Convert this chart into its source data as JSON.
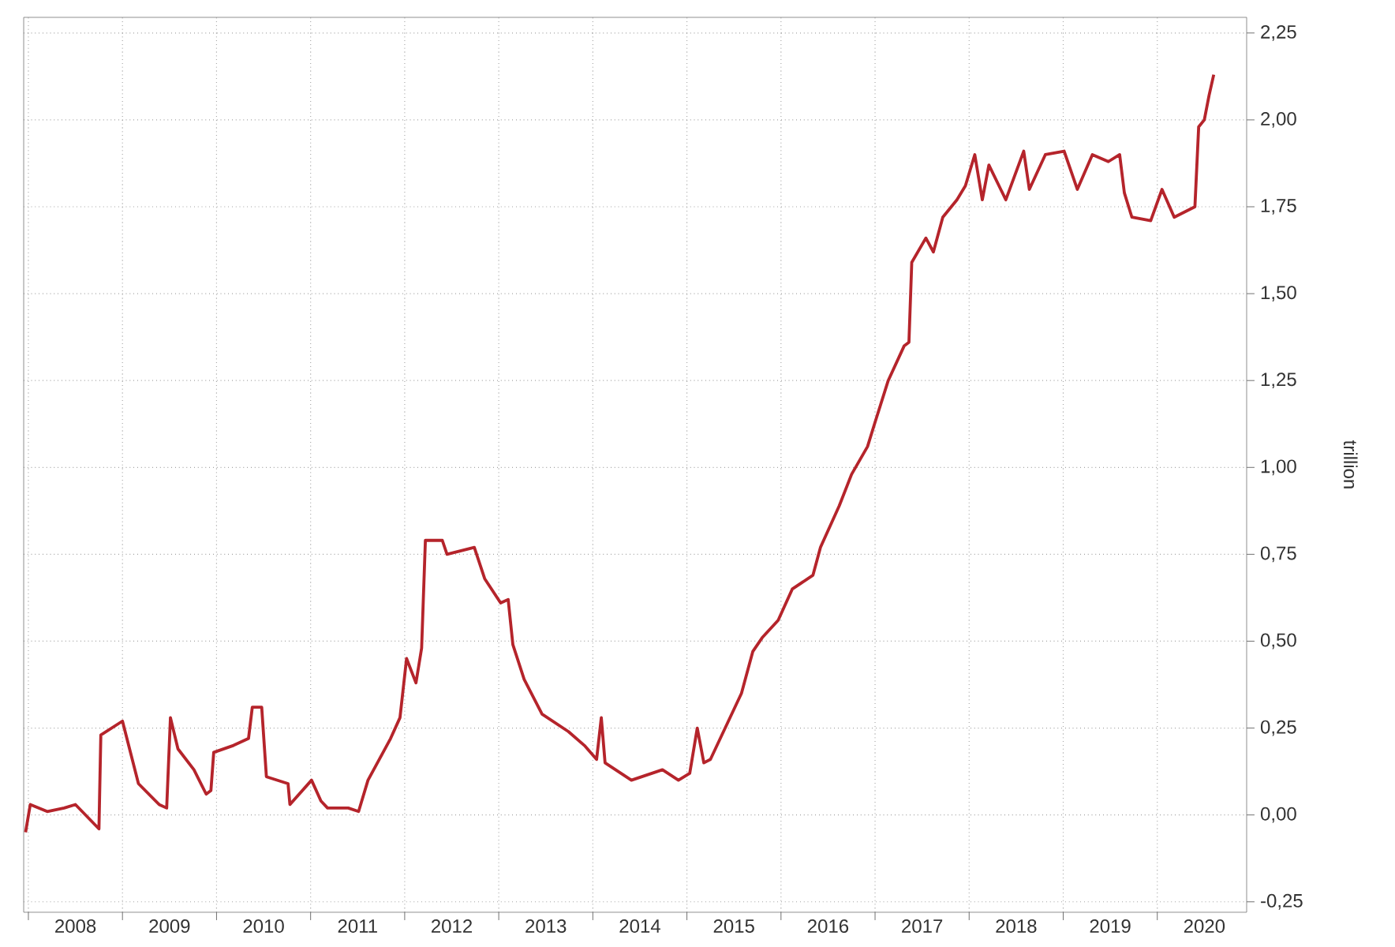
{
  "chart_data": {
    "type": "line",
    "ylabel": "trillion",
    "x": [
      2007.97,
      2008.02,
      2008.2,
      2008.38,
      2008.5,
      2008.75,
      2008.77,
      2009.0,
      2009.17,
      2009.39,
      2009.47,
      2009.51,
      2009.59,
      2009.76,
      2009.89,
      2009.94,
      2009.97,
      2010.18,
      2010.34,
      2010.38,
      2010.48,
      2010.53,
      2010.76,
      2010.78,
      2011.01,
      2011.11,
      2011.18,
      2011.4,
      2011.51,
      2011.61,
      2011.85,
      2011.95,
      2012.02,
      2012.12,
      2012.18,
      2012.22,
      2012.4,
      2012.45,
      2012.74,
      2012.85,
      2013.02,
      2013.1,
      2013.15,
      2013.27,
      2013.46,
      2013.74,
      2013.91,
      2014.04,
      2014.09,
      2014.13,
      2014.41,
      2014.74,
      2014.91,
      2015.03,
      2015.11,
      2015.18,
      2015.25,
      2015.58,
      2015.7,
      2015.8,
      2015.97,
      2016.12,
      2016.34,
      2016.42,
      2016.62,
      2016.75,
      2016.92,
      2017.0,
      2017.14,
      2017.31,
      2017.36,
      2017.39,
      2017.54,
      2017.62,
      2017.72,
      2017.87,
      2017.96,
      2018.06,
      2018.14,
      2018.21,
      2018.39,
      2018.58,
      2018.64,
      2018.81,
      2019.01,
      2019.15,
      2019.31,
      2019.48,
      2019.6,
      2019.65,
      2019.73,
      2019.93,
      2020.05,
      2020.18,
      2020.4,
      2020.44,
      2020.5,
      2020.55,
      2020.6
    ],
    "series": [
      {
        "color": "#b5242b",
        "values": [
          -0.05,
          0.03,
          0.01,
          0.02,
          0.03,
          -0.04,
          0.23,
          0.27,
          0.09,
          0.03,
          0.02,
          0.28,
          0.19,
          0.13,
          0.06,
          0.07,
          0.18,
          0.2,
          0.22,
          0.31,
          0.31,
          0.11,
          0.09,
          0.03,
          0.1,
          0.04,
          0.02,
          0.02,
          0.01,
          0.1,
          0.22,
          0.28,
          0.45,
          0.38,
          0.48,
          0.79,
          0.79,
          0.75,
          0.77,
          0.68,
          0.61,
          0.62,
          0.49,
          0.39,
          0.29,
          0.24,
          0.2,
          0.16,
          0.28,
          0.15,
          0.1,
          0.13,
          0.1,
          0.12,
          0.25,
          0.15,
          0.16,
          0.35,
          0.47,
          0.51,
          0.56,
          0.65,
          0.69,
          0.77,
          0.89,
          0.98,
          1.06,
          1.13,
          1.25,
          1.35,
          1.36,
          1.59,
          1.66,
          1.62,
          1.72,
          1.77,
          1.81,
          1.9,
          1.77,
          1.87,
          1.77,
          1.91,
          1.8,
          1.9,
          1.91,
          1.8,
          1.9,
          1.88,
          1.9,
          1.79,
          1.72,
          1.71,
          1.8,
          1.72,
          1.75,
          1.98,
          2.0,
          2.07,
          2.13
        ]
      }
    ],
    "xlim": [
      2007.95,
      2020.95
    ],
    "xticks": [
      {
        "value": 2008,
        "label": null
      },
      {
        "value": 2009,
        "label": null
      },
      {
        "value": 2010,
        "label": null
      },
      {
        "value": 2011,
        "label": null
      },
      {
        "value": 2012,
        "label": null
      },
      {
        "value": 2013,
        "label": null
      },
      {
        "value": 2014,
        "label": null
      },
      {
        "value": 2015,
        "label": null
      },
      {
        "value": 2016,
        "label": null
      },
      {
        "value": 2017,
        "label": null
      },
      {
        "value": 2018,
        "label": null
      },
      {
        "value": 2019,
        "label": null
      },
      {
        "value": 2020,
        "label": null
      },
      {
        "value": 2008.5,
        "label": "2008"
      },
      {
        "value": 2009.5,
        "label": "2009"
      },
      {
        "value": 2010.5,
        "label": "2010"
      },
      {
        "value": 2011.5,
        "label": "2011"
      },
      {
        "value": 2012.5,
        "label": "2012"
      },
      {
        "value": 2013.5,
        "label": "2013"
      },
      {
        "value": 2014.5,
        "label": "2014"
      },
      {
        "value": 2015.5,
        "label": "2015"
      },
      {
        "value": 2016.5,
        "label": "2016"
      },
      {
        "value": 2017.5,
        "label": "2017"
      },
      {
        "value": 2018.5,
        "label": "2018"
      },
      {
        "value": 2019.5,
        "label": "2019"
      },
      {
        "value": 2020.5,
        "label": "2020"
      }
    ],
    "ylim": [
      -0.28,
      2.295
    ],
    "yticks": [
      {
        "value": -0.25,
        "label": "-0,25"
      },
      {
        "value": 0,
        "label": "0,00"
      },
      {
        "value": 0.25,
        "label": "0,25"
      },
      {
        "value": 0.5,
        "label": "0,50"
      },
      {
        "value": 0.75,
        "label": "0,75"
      },
      {
        "value": 1,
        "label": "1,00"
      },
      {
        "value": 1.25,
        "label": "1,25"
      },
      {
        "value": 1.5,
        "label": "1,50"
      },
      {
        "value": 1.75,
        "label": "1,75"
      },
      {
        "value": 2,
        "label": "2,00"
      },
      {
        "value": 2.25,
        "label": "2,25"
      }
    ],
    "grid": true,
    "marker": "none",
    "line_style": "solid"
  }
}
